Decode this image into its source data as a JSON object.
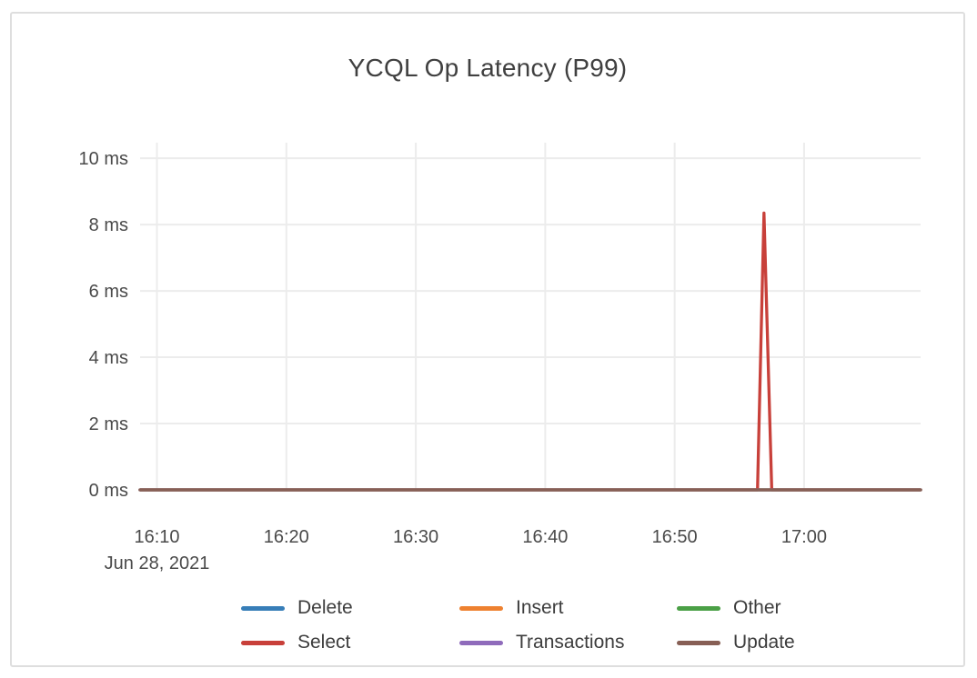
{
  "window": {
    "background": "#ffffff",
    "card_border_color": "#dedede"
  },
  "chart_data": {
    "type": "line",
    "title": "YCQL Op Latency (P99)",
    "grid": true,
    "legend_position": "bottom",
    "x_axis": {
      "date_label": "Jun 28, 2021",
      "unit": "time of day (HH:MM)",
      "domain_minutes_after_1600": [
        8.7,
        69
      ],
      "ticks": [
        {
          "minute": 10,
          "label": "16:10"
        },
        {
          "minute": 20,
          "label": "16:20"
        },
        {
          "minute": 30,
          "label": "16:30"
        },
        {
          "minute": 40,
          "label": "16:40"
        },
        {
          "minute": 50,
          "label": "16:50"
        },
        {
          "minute": 60,
          "label": "17:00"
        }
      ]
    },
    "y_axis": {
      "unit": "ms",
      "domain": [
        0,
        10.47
      ],
      "ticks": [
        {
          "value": 0,
          "label": "0 ms"
        },
        {
          "value": 2,
          "label": "2 ms"
        },
        {
          "value": 4,
          "label": "4 ms"
        },
        {
          "value": 6,
          "label": "6 ms"
        },
        {
          "value": 8,
          "label": "8 ms"
        },
        {
          "value": 10,
          "label": "10 ms"
        }
      ]
    },
    "series": [
      {
        "name": "Delete",
        "color": "#377eb8",
        "points": [
          [
            8.7,
            0
          ],
          [
            69,
            0
          ]
        ]
      },
      {
        "name": "Insert",
        "color": "#ee8130",
        "points": [
          [
            8.7,
            0
          ],
          [
            69,
            0
          ]
        ]
      },
      {
        "name": "Other",
        "color": "#4ba046",
        "points": [
          [
            8.7,
            0
          ],
          [
            69,
            0
          ]
        ]
      },
      {
        "name": "Select",
        "color": "#c8403a",
        "points": [
          [
            8.7,
            0
          ],
          [
            56.4,
            0
          ],
          [
            56.9,
            8.35
          ],
          [
            57.5,
            0
          ],
          [
            69,
            0
          ]
        ]
      },
      {
        "name": "Transactions",
        "color": "#8f6bbb",
        "points": [
          [
            8.7,
            0
          ],
          [
            69,
            0
          ]
        ]
      },
      {
        "name": "Update",
        "color": "#875f55",
        "points": [
          [
            8.7,
            0
          ],
          [
            69,
            0
          ]
        ]
      }
    ],
    "annotations": {
      "spike": {
        "series": "Select",
        "approx_time": "16:57",
        "approx_value_ms": 8.35
      }
    }
  }
}
